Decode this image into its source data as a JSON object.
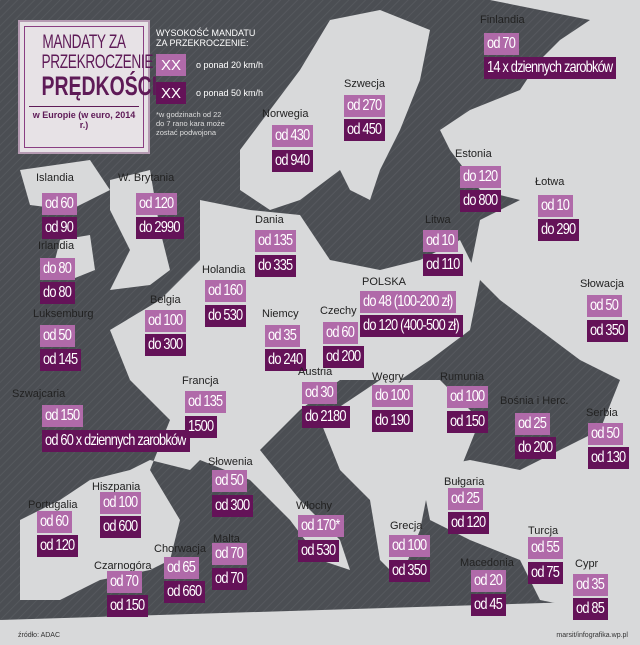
{
  "title": {
    "line1": "MANDATY ZA",
    "line2": "PRZEKROCZENIE",
    "line3": "PRĘDKOŚCI",
    "subtitle": "w Europie (w euro, 2014 r.)"
  },
  "legend": {
    "heading1": "WYSOKOŚĆ MANDATU",
    "heading2": "ZA PRZEKROCZENIE:",
    "swatch": "XX",
    "over20": "o ponad 20 km/h",
    "over50": "o ponad 50 km/h",
    "note1": "*w godzinach od 22",
    "note2": "do 7 rano kara może",
    "note3": "zostać podwojona"
  },
  "colors": {
    "sea": "#4b4e53",
    "land": "#d8d9da",
    "over20": "#b06aa9",
    "over50": "#641258"
  },
  "countries": [
    {
      "name": "Finlandia",
      "over20": "od 70",
      "over50": "14 x dziennych zarobków"
    },
    {
      "name": "Szwecja",
      "over20": "od 270",
      "over50": "od 450"
    },
    {
      "name": "Norwegia",
      "over20": "od 430",
      "over50": "od 940"
    },
    {
      "name": "Islandia",
      "over20": "od 60",
      "over50": "od 90"
    },
    {
      "name": "W. Brytania",
      "over20": "od 120",
      "over50": "do 2990"
    },
    {
      "name": "Estonia",
      "over20": "do 120",
      "over50": "do 800"
    },
    {
      "name": "Łotwa",
      "over20": "od 10",
      "over50": "do 290"
    },
    {
      "name": "Dania",
      "over20": "od 135",
      "over50": "do 335"
    },
    {
      "name": "Litwa",
      "over20": "od 10",
      "over50": "od 110"
    },
    {
      "name": "Irlandia",
      "over20": "do 80",
      "over50": "do 80"
    },
    {
      "name": "Holandia",
      "over20": "od 160",
      "over50": "do 530"
    },
    {
      "name": "Belgia",
      "over20": "od 100",
      "over50": "do 300"
    },
    {
      "name": "Luksemburg",
      "over20": "od 50",
      "over50": "od 145"
    },
    {
      "name": "Niemcy",
      "over20": "od 35",
      "over50": "do 240"
    },
    {
      "name": "Czechy",
      "over20": "od 60",
      "over50": "od 200"
    },
    {
      "name": "POLSKA",
      "over20": "do 48 (100-200 zł)",
      "over50": "do 120 (400-500 zł)"
    },
    {
      "name": "Słowacja",
      "over20": "od 50",
      "over50": "od 350"
    },
    {
      "name": "Austria",
      "over20": "od 30",
      "over50": "do 2180"
    },
    {
      "name": "Szwajcaria",
      "over20": "od 150",
      "over50": "od 60 x dziennych zarobków"
    },
    {
      "name": "Francja",
      "over20": "od 135",
      "over50": "1500"
    },
    {
      "name": "Węgry",
      "over20": "do 100",
      "over50": "do 190"
    },
    {
      "name": "Rumunia",
      "over20": "od 100",
      "over50": "od 150"
    },
    {
      "name": "Bośnia i Herc.",
      "over20": "od 25",
      "over50": "do 200"
    },
    {
      "name": "Serbia",
      "over20": "od 50",
      "over50": "od 130"
    },
    {
      "name": "Słowenia",
      "over20": "od 50",
      "over50": "od 300"
    },
    {
      "name": "Hiszpania",
      "over20": "od 100",
      "over50": "od 600"
    },
    {
      "name": "Portugalia",
      "over20": "od 60",
      "over50": "od 120"
    },
    {
      "name": "Włochy",
      "over20": "od 170*",
      "over50": "od 530"
    },
    {
      "name": "Bułgaria",
      "over20": "od 25",
      "over50": "od 120"
    },
    {
      "name": "Grecja",
      "over20": "od 100",
      "over50": "od 350"
    },
    {
      "name": "Turcja",
      "over20": "od 55",
      "over50": "od 75"
    },
    {
      "name": "Chorwacja",
      "over20": "od 65",
      "over50": "od 660"
    },
    {
      "name": "Malta",
      "over20": "od 70",
      "over50": "od 70"
    },
    {
      "name": "Czarnogóra",
      "over20": "od 70",
      "over50": "od 150"
    },
    {
      "name": "Macedonia",
      "over20": "od 20",
      "over50": "od 45"
    },
    {
      "name": "Cypr",
      "over20": "od 35",
      "over50": "od 85"
    }
  ],
  "footer": {
    "source": "źródło: ADAC",
    "credit": "marsit/infografika.wp.pl"
  }
}
